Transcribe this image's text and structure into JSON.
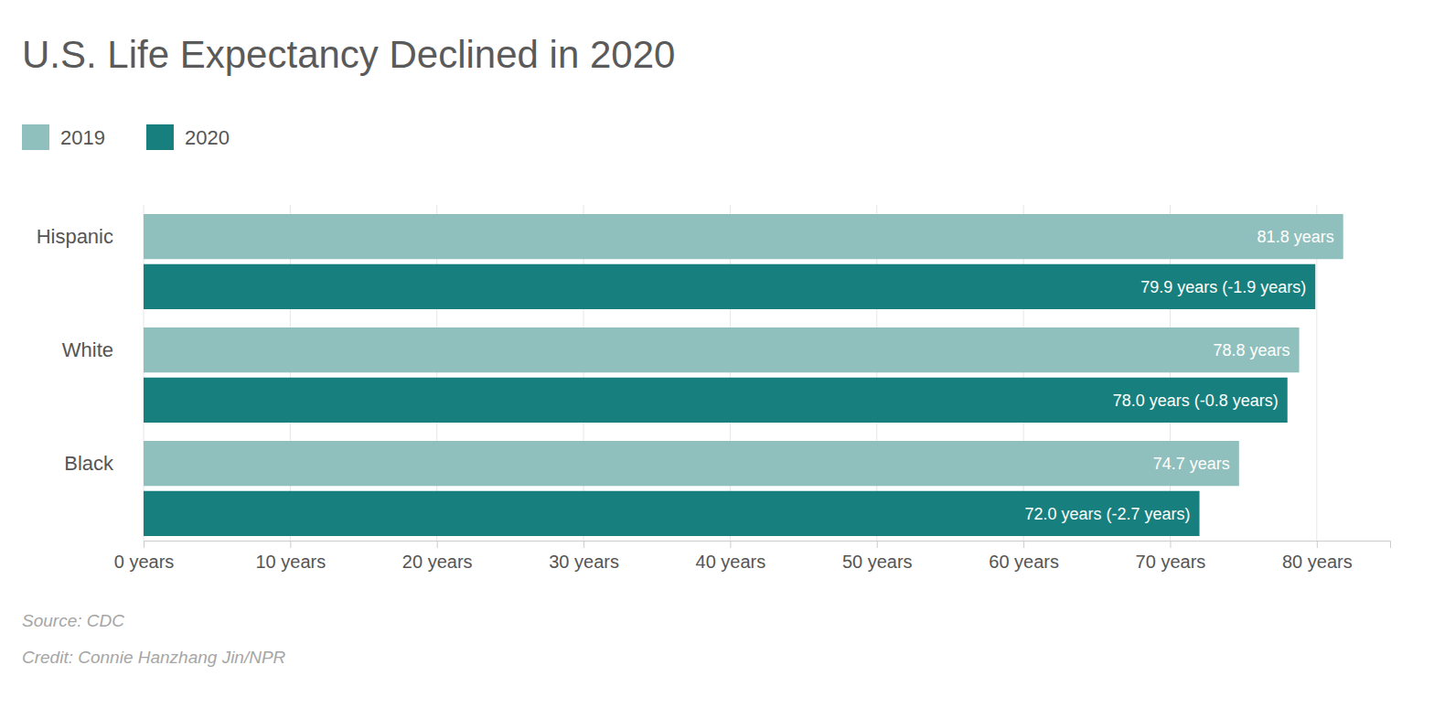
{
  "chart_data": {
    "type": "bar",
    "orientation": "horizontal",
    "title": "U.S. Life Expectancy Declined in 2020",
    "categories": [
      "Hispanic",
      "White",
      "Black"
    ],
    "series": [
      {
        "name": "2019",
        "color": "#8fc0bd",
        "values": [
          81.8,
          78.8,
          74.7
        ],
        "value_labels": [
          "81.8 years",
          "78.8 years",
          "74.7 years"
        ]
      },
      {
        "name": "2020",
        "color": "#17807e",
        "values": [
          79.9,
          78.0,
          72.0
        ],
        "value_labels": [
          "79.9 years (-1.9 years)",
          "78.0 years (-0.8 years)",
          "72.0 years (-2.7 years)"
        ]
      }
    ],
    "xlim": [
      0,
      85
    ],
    "xticks": [
      {
        "value": 0,
        "label": "0 years"
      },
      {
        "value": 10,
        "label": "10 years"
      },
      {
        "value": 20,
        "label": "20 years"
      },
      {
        "value": 30,
        "label": "30 years"
      },
      {
        "value": 40,
        "label": "40 years"
      },
      {
        "value": 50,
        "label": "50 years"
      },
      {
        "value": 60,
        "label": "60 years"
      },
      {
        "value": 70,
        "label": "70 years"
      },
      {
        "value": 80,
        "label": "80 years"
      }
    ],
    "grid": true,
    "legend": "top-left",
    "data_labels": true,
    "annotations": [
      "Source: CDC",
      "Credit: Connie Hanzhang Jin/NPR"
    ]
  }
}
